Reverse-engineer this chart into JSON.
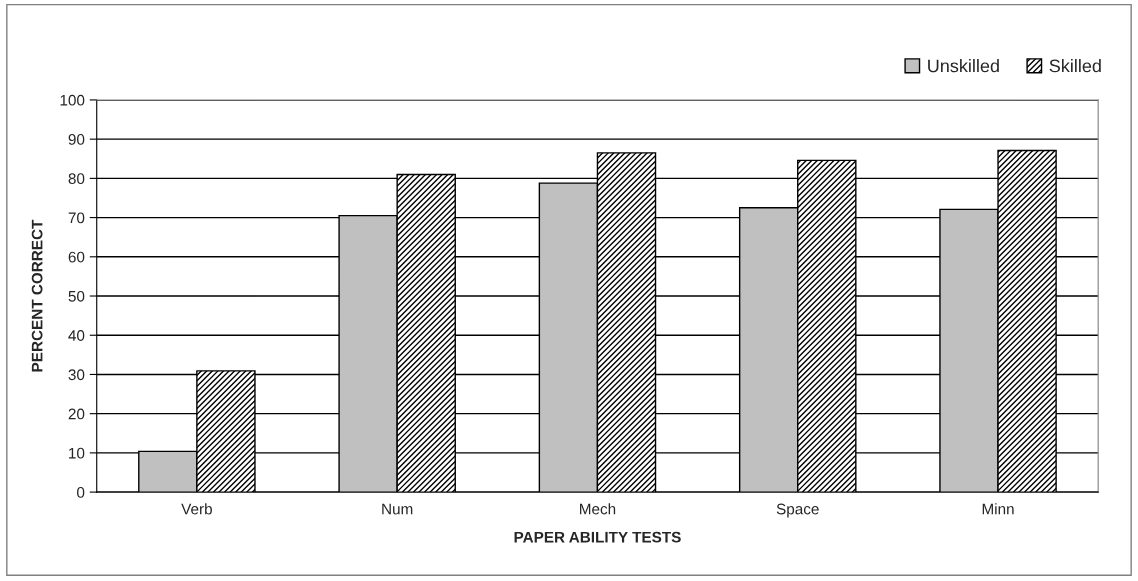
{
  "chart_data": {
    "type": "bar",
    "xlabel": "PAPER ABILITY TESTS",
    "ylabel": "PERCENT CORRECT",
    "categories": [
      "Verb",
      "Num",
      "Mech",
      "Space",
      "Minn"
    ],
    "series": [
      {
        "name": "Unskilled",
        "color": "#c0c0c0",
        "values": [
          10.4,
          70.5,
          78.8,
          72.5,
          72.1
        ]
      },
      {
        "name": "Skilled",
        "color": "#000000",
        "values": [
          30.9,
          81.0,
          86.5,
          84.6,
          87.1
        ]
      }
    ],
    "ylim": [
      0,
      100
    ],
    "yticks": [
      0,
      10,
      20,
      30,
      40,
      50,
      60,
      70,
      80,
      90,
      100
    ],
    "grid": "y",
    "legend": "top right"
  }
}
